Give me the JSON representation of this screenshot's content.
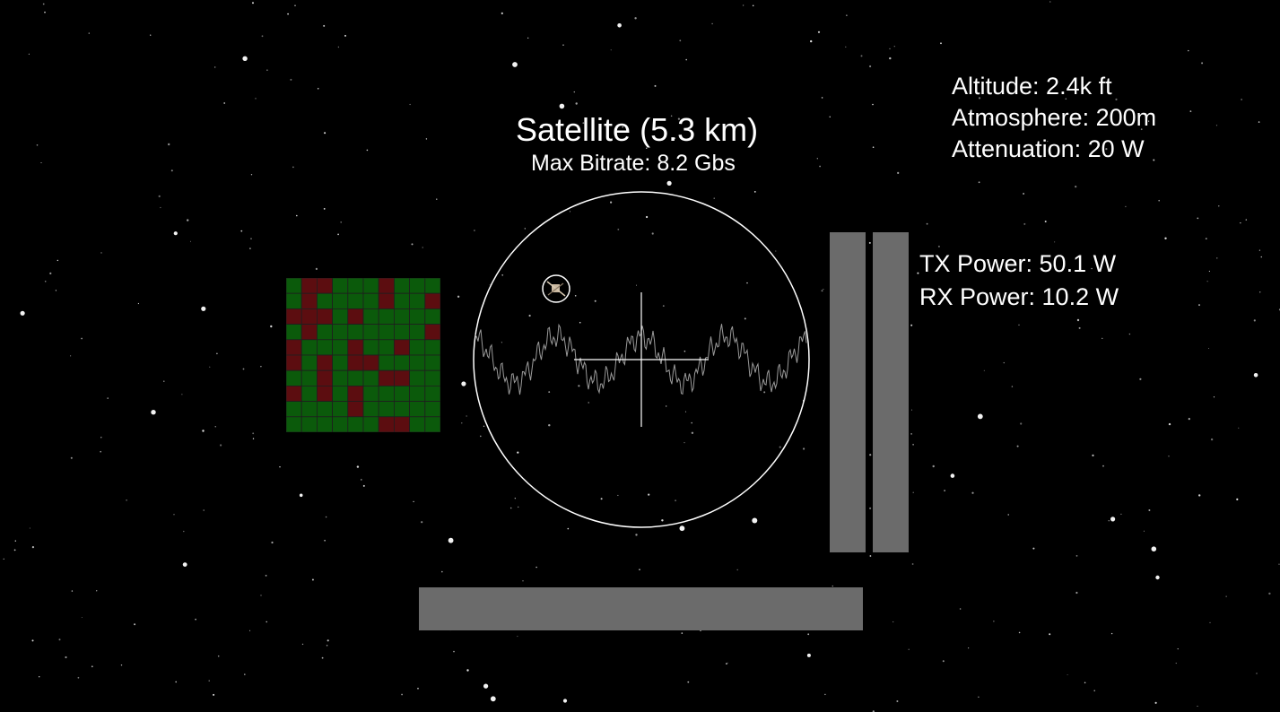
{
  "hud": {
    "title": "Satellite (5.3 km)",
    "subtitle": "Max Bitrate: 8.2 Gbs",
    "stats": {
      "altitude": "Altitude: 2.4k ft",
      "atmosphere": "Atmosphere: 200m",
      "attenuation": "Attenuation: 20 W"
    },
    "power": {
      "tx": "TX Power: 50.1 W",
      "rx": "RX Power: 10.2 W"
    }
  },
  "colors": {
    "background": "#000000",
    "grid_good": "#0b5a0b",
    "grid_bad": "#5c0d10",
    "grid_line": "#1e1e1e",
    "bar": "#6b6b6b",
    "scope_line": "#ffffff",
    "waveform": "#9a9a9a"
  },
  "grid": {
    "rows": 10,
    "cols": 10,
    "cells": [
      [
        0,
        1,
        1,
        0,
        0,
        0,
        1,
        0,
        0,
        0
      ],
      [
        0,
        1,
        0,
        0,
        0,
        0,
        1,
        0,
        0,
        1
      ],
      [
        1,
        1,
        1,
        0,
        1,
        0,
        0,
        0,
        0,
        0
      ],
      [
        0,
        1,
        0,
        0,
        0,
        0,
        0,
        0,
        0,
        1
      ],
      [
        1,
        0,
        0,
        0,
        1,
        0,
        0,
        1,
        0,
        0
      ],
      [
        1,
        0,
        1,
        0,
        1,
        1,
        0,
        0,
        0,
        0
      ],
      [
        0,
        0,
        1,
        0,
        0,
        0,
        1,
        1,
        0,
        0
      ],
      [
        1,
        0,
        1,
        0,
        1,
        0,
        0,
        0,
        0,
        0
      ],
      [
        0,
        0,
        0,
        0,
        1,
        0,
        0,
        0,
        0,
        0
      ],
      [
        0,
        0,
        0,
        0,
        0,
        0,
        1,
        1,
        0,
        0
      ]
    ]
  },
  "icons": {
    "satellite": "satellite-icon",
    "crosshair": "crosshair-icon"
  }
}
